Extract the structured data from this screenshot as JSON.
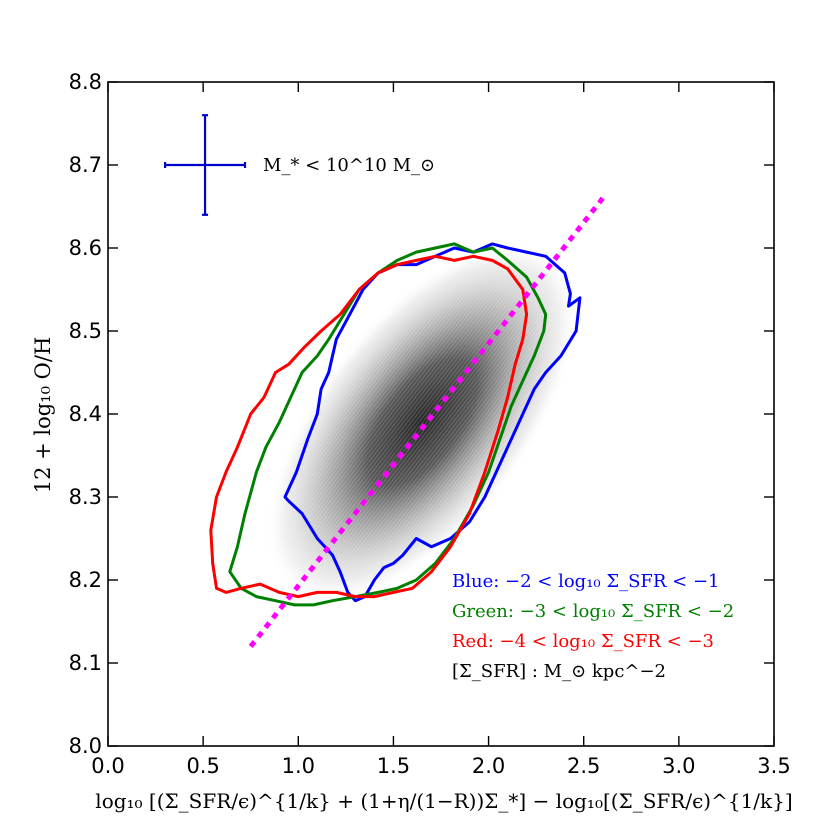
{
  "chart_data": {
    "type": "scatter",
    "xlabel": "log₁₀ [(Σ_SFR/ϵ)^{1/k} + (1+η/(1−R))Σ_*] − log₁₀[(Σ_SFR/ϵ)^{1/k}]",
    "ylabel": "12 + log₁₀ O/H",
    "xlim": [
      0.0,
      3.5
    ],
    "ylim": [
      8.0,
      8.8
    ],
    "xticks": [
      "0.0",
      "0.5",
      "1.0",
      "1.5",
      "2.0",
      "2.5",
      "3.0",
      "3.5"
    ],
    "yticks": [
      "8.0",
      "8.1",
      "8.2",
      "8.3",
      "8.4",
      "8.5",
      "8.6",
      "8.7",
      "8.8"
    ],
    "grid": false,
    "error_bar": {
      "x": 0.51,
      "y": 8.7,
      "x_range": [
        0.3,
        0.72
      ],
      "y_range": [
        8.64,
        8.76
      ],
      "color": "#0000cc",
      "label": "M_* < 10^10 M_⊙"
    },
    "fit_line": {
      "color": "#ff00ff",
      "style": "dotted",
      "points": [
        [
          0.75,
          8.12
        ],
        [
          2.6,
          8.66
        ]
      ]
    },
    "density": {
      "colormap": "gray",
      "center": [
        1.65,
        8.39
      ],
      "description_color": "#555555"
    },
    "series": [
      {
        "name": "Blue",
        "color": "#0000ff",
        "range_text": "−2 < log₁₀ Σ_SFR < −1",
        "contour": [
          [
            0.93,
            8.3
          ],
          [
            0.99,
            8.33
          ],
          [
            1.05,
            8.37
          ],
          [
            1.1,
            8.4
          ],
          [
            1.12,
            8.43
          ],
          [
            1.16,
            8.45
          ],
          [
            1.2,
            8.49
          ],
          [
            1.27,
            8.52
          ],
          [
            1.34,
            8.55
          ],
          [
            1.42,
            8.57
          ],
          [
            1.52,
            8.58
          ],
          [
            1.62,
            8.58
          ],
          [
            1.72,
            8.59
          ],
          [
            1.82,
            8.6
          ],
          [
            1.92,
            8.595
          ],
          [
            2.02,
            8.605
          ],
          [
            2.1,
            8.6
          ],
          [
            2.2,
            8.595
          ],
          [
            2.3,
            8.59
          ],
          [
            2.4,
            8.57
          ],
          [
            2.43,
            8.545
          ],
          [
            2.42,
            8.53
          ],
          [
            2.48,
            8.54
          ],
          [
            2.46,
            8.5
          ],
          [
            2.38,
            8.47
          ],
          [
            2.3,
            8.45
          ],
          [
            2.24,
            8.43
          ],
          [
            2.18,
            8.4
          ],
          [
            2.1,
            8.36
          ],
          [
            2.04,
            8.33
          ],
          [
            1.98,
            8.3
          ],
          [
            1.9,
            8.27
          ],
          [
            1.8,
            8.25
          ],
          [
            1.7,
            8.24
          ],
          [
            1.62,
            8.25
          ],
          [
            1.55,
            8.23
          ],
          [
            1.5,
            8.22
          ],
          [
            1.45,
            8.215
          ],
          [
            1.4,
            8.2
          ],
          [
            1.35,
            8.18
          ],
          [
            1.3,
            8.175
          ],
          [
            1.26,
            8.185
          ],
          [
            1.22,
            8.21
          ],
          [
            1.18,
            8.23
          ],
          [
            1.1,
            8.25
          ],
          [
            1.02,
            8.28
          ],
          [
            0.95,
            8.295
          ],
          [
            0.93,
            8.3
          ]
        ]
      },
      {
        "name": "Green",
        "color": "#008000",
        "range_text": "−3 < log₁₀ Σ_SFR < −2",
        "contour": [
          [
            0.64,
            8.21
          ],
          [
            0.68,
            8.24
          ],
          [
            0.72,
            8.28
          ],
          [
            0.78,
            8.33
          ],
          [
            0.83,
            8.36
          ],
          [
            0.9,
            8.39
          ],
          [
            0.96,
            8.42
          ],
          [
            1.02,
            8.45
          ],
          [
            1.1,
            8.47
          ],
          [
            1.16,
            8.49
          ],
          [
            1.24,
            8.52
          ],
          [
            1.32,
            8.55
          ],
          [
            1.42,
            8.57
          ],
          [
            1.52,
            8.585
          ],
          [
            1.62,
            8.595
          ],
          [
            1.72,
            8.6
          ],
          [
            1.82,
            8.605
          ],
          [
            1.92,
            8.595
          ],
          [
            2.02,
            8.6
          ],
          [
            2.1,
            8.585
          ],
          [
            2.2,
            8.565
          ],
          [
            2.26,
            8.54
          ],
          [
            2.3,
            8.52
          ],
          [
            2.29,
            8.5
          ],
          [
            2.24,
            8.47
          ],
          [
            2.18,
            8.44
          ],
          [
            2.12,
            8.41
          ],
          [
            2.06,
            8.37
          ],
          [
            2.0,
            8.33
          ],
          [
            1.92,
            8.29
          ],
          [
            1.82,
            8.25
          ],
          [
            1.72,
            8.22
          ],
          [
            1.62,
            8.2
          ],
          [
            1.52,
            8.19
          ],
          [
            1.42,
            8.185
          ],
          [
            1.3,
            8.18
          ],
          [
            1.18,
            8.175
          ],
          [
            1.08,
            8.17
          ],
          [
            0.98,
            8.17
          ],
          [
            0.88,
            8.175
          ],
          [
            0.78,
            8.18
          ],
          [
            0.7,
            8.19
          ],
          [
            0.64,
            8.21
          ]
        ]
      },
      {
        "name": "Red",
        "color": "#ff0000",
        "range_text": "−4 < log₁₀ Σ_SFR < −3",
        "contour": [
          [
            0.57,
            8.19
          ],
          [
            0.55,
            8.22
          ],
          [
            0.54,
            8.26
          ],
          [
            0.57,
            8.3
          ],
          [
            0.62,
            8.33
          ],
          [
            0.68,
            8.36
          ],
          [
            0.75,
            8.4
          ],
          [
            0.82,
            8.42
          ],
          [
            0.88,
            8.45
          ],
          [
            0.95,
            8.46
          ],
          [
            1.03,
            8.48
          ],
          [
            1.12,
            8.5
          ],
          [
            1.22,
            8.52
          ],
          [
            1.32,
            8.55
          ],
          [
            1.42,
            8.57
          ],
          [
            1.52,
            8.58
          ],
          [
            1.62,
            8.585
          ],
          [
            1.72,
            8.59
          ],
          [
            1.82,
            8.585
          ],
          [
            1.92,
            8.59
          ],
          [
            2.02,
            8.585
          ],
          [
            2.1,
            8.575
          ],
          [
            2.18,
            8.55
          ],
          [
            2.2,
            8.52
          ],
          [
            2.18,
            8.49
          ],
          [
            2.14,
            8.46
          ],
          [
            2.1,
            8.42
          ],
          [
            2.05,
            8.38
          ],
          [
            1.98,
            8.33
          ],
          [
            1.9,
            8.28
          ],
          [
            1.8,
            8.24
          ],
          [
            1.7,
            8.21
          ],
          [
            1.6,
            8.19
          ],
          [
            1.5,
            8.185
          ],
          [
            1.4,
            8.18
          ],
          [
            1.3,
            8.18
          ],
          [
            1.2,
            8.185
          ],
          [
            1.1,
            8.185
          ],
          [
            1.0,
            8.18
          ],
          [
            0.9,
            8.185
          ],
          [
            0.8,
            8.195
          ],
          [
            0.7,
            8.19
          ],
          [
            0.62,
            8.185
          ],
          [
            0.57,
            8.19
          ]
        ]
      }
    ],
    "units_note": "[Σ_SFR] : M_⊙ kpc^−2"
  }
}
